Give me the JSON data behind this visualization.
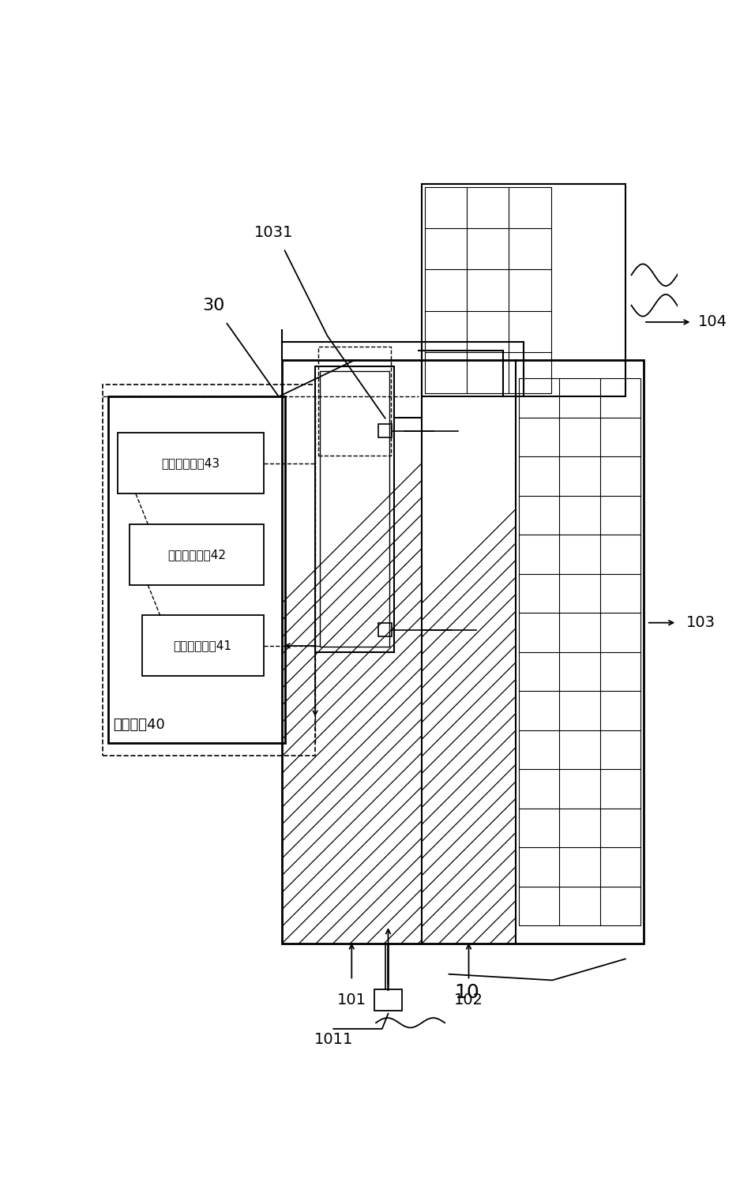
{
  "labels": {
    "10": "10",
    "30": "30",
    "101": "101",
    "102": "102",
    "103": "103",
    "104": "104",
    "1011": "1011",
    "1031": "1031",
    "control_center": "控制中心40",
    "unit41": "信息获取单元41",
    "unit42": "信息处理单元42",
    "unit43": "信息执行单元43"
  },
  "figsize": [
    9.56,
    15.16
  ],
  "dpi": 100
}
